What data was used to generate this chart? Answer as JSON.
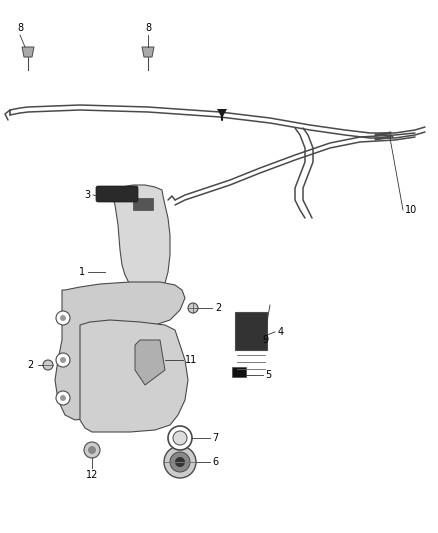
{
  "bg_color": "#ffffff",
  "line_color": "#4a4a4a",
  "label_color": "#000000",
  "figsize": [
    4.38,
    5.33
  ],
  "dpi": 100,
  "xlim": [
    0,
    438
  ],
  "ylim": [
    0,
    533
  ]
}
